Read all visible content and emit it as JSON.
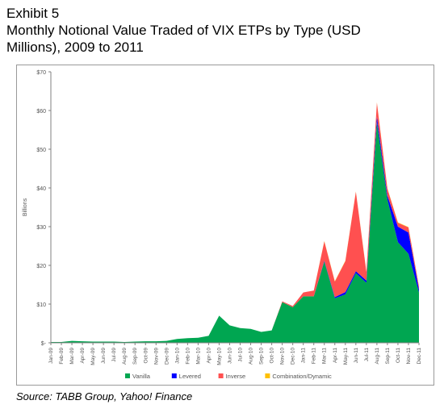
{
  "exhibit": {
    "label": "Exhibit 5",
    "title_line1": "Monthly Notional Value Traded of VIX ETPs by Type (USD",
    "title_line2": "Millions), 2009 to 2011"
  },
  "source": "Source: TABB Group, Yahoo! Finance",
  "chart_data": {
    "type": "area",
    "stacked": true,
    "ylabel": "Billions",
    "xlabel": "",
    "ylim": [
      0,
      70
    ],
    "yticks": [
      "$-",
      "$10",
      "$20",
      "$30",
      "$40",
      "$50",
      "$60",
      "$70"
    ],
    "grid": false,
    "legend_position": "bottom",
    "categories": [
      "Jan-09",
      "Feb-09",
      "Mar-09",
      "Apr-09",
      "May-09",
      "Jun-09",
      "Jul-09",
      "Aug-09",
      "Sep-09",
      "Oct-09",
      "Nov-09",
      "Dec-09",
      "Jan-10",
      "Feb-10",
      "Mar-10",
      "Apr-10",
      "May-10",
      "Jun-10",
      "Jul-10",
      "Aug-10",
      "Sep-10",
      "Oct-10",
      "Nov-10",
      "Dec-10",
      "Jan-11",
      "Feb-11",
      "Mar-11",
      "Apr-11",
      "May-11",
      "Jun-11",
      "Jul-11",
      "Aug-11",
      "Sep-11",
      "Oct-11",
      "Nov-11",
      "Dec-11"
    ],
    "series": [
      {
        "name": "Vanilla",
        "color": "#00a651",
        "values": [
          0.2,
          0.2,
          0.5,
          0.4,
          0.3,
          0.3,
          0.3,
          0.2,
          0.3,
          0.4,
          0.4,
          0.5,
          1.0,
          1.2,
          1.3,
          1.8,
          7.0,
          4.5,
          3.8,
          3.6,
          2.8,
          3.2,
          10.5,
          9.2,
          12.0,
          12.0,
          21.0,
          11.5,
          12.5,
          18.0,
          15.5,
          57.0,
          37.0,
          26.0,
          23.0,
          13.0
        ]
      },
      {
        "name": "Levered",
        "color": "#0000ff",
        "values": [
          0,
          0,
          0,
          0,
          0,
          0,
          0,
          0,
          0,
          0,
          0,
          0,
          0,
          0,
          0,
          0,
          0,
          0,
          0,
          0,
          0,
          0,
          0,
          0,
          0,
          0,
          0.2,
          0.3,
          0.6,
          0.5,
          0.6,
          1.5,
          1.0,
          4.0,
          5.5,
          0.8
        ]
      },
      {
        "name": "Inverse",
        "color": "#ff5050",
        "values": [
          0,
          0,
          0,
          0,
          0,
          0,
          0,
          0,
          0,
          0,
          0,
          0,
          0,
          0,
          0,
          0,
          0,
          0,
          0,
          0,
          0,
          0,
          0.2,
          0.3,
          1.0,
          1.5,
          5.0,
          4.0,
          8.0,
          20.5,
          2.2,
          3.5,
          1.8,
          1.0,
          1.3,
          0.7
        ]
      },
      {
        "name": "Combination/Dynamic",
        "color": "#ffc000",
        "values": [
          0,
          0,
          0,
          0,
          0,
          0,
          0,
          0,
          0,
          0,
          0,
          0,
          0,
          0,
          0,
          0,
          0,
          0,
          0,
          0,
          0,
          0,
          0,
          0,
          0,
          0,
          0.1,
          0.1,
          0.1,
          0.1,
          0.1,
          0.1,
          0.1,
          0.1,
          0.1,
          0.1
        ]
      }
    ]
  }
}
